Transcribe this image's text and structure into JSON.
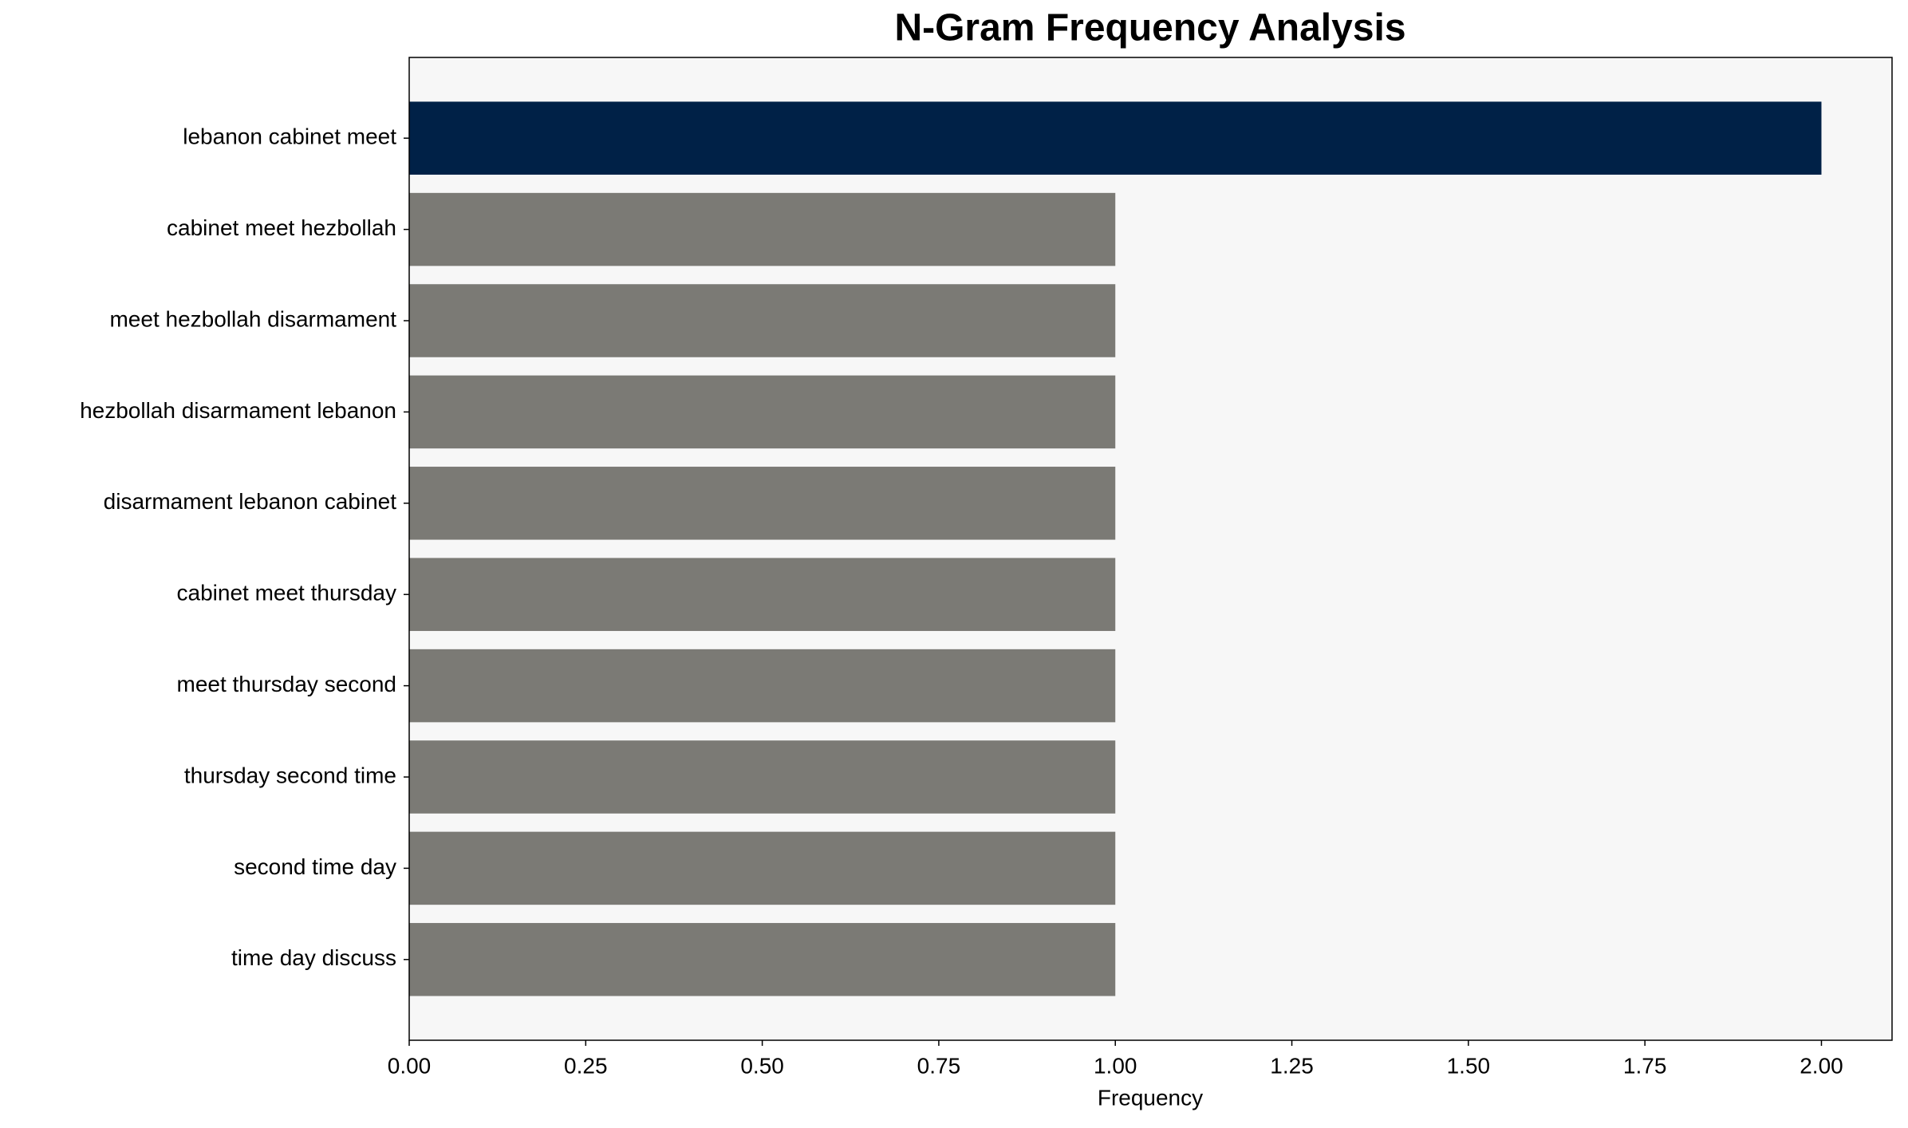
{
  "chart_data": {
    "type": "bar",
    "orientation": "horizontal",
    "title": "N-Gram Frequency Analysis",
    "x_label": "Frequency",
    "categories": [
      "lebanon cabinet meet",
      "cabinet meet hezbollah",
      "meet hezbollah disarmament",
      "hezbollah disarmament lebanon",
      "disarmament lebanon cabinet",
      "cabinet meet thursday",
      "meet thursday second",
      "thursday second time",
      "second time day",
      "time day discuss"
    ],
    "values": [
      2,
      1,
      1,
      1,
      1,
      1,
      1,
      1,
      1,
      1
    ],
    "colors": [
      "#002147",
      "#7b7a75",
      "#7b7a75",
      "#7b7a75",
      "#7b7a75",
      "#7b7a75",
      "#7b7a75",
      "#7b7a75",
      "#7b7a75",
      "#7b7a75"
    ],
    "xlim": [
      0,
      2.1
    ],
    "xticks": [
      {
        "value": 0,
        "label": "0.00"
      },
      {
        "value": 0.25,
        "label": "0.25"
      },
      {
        "value": 0.5,
        "label": "0.50"
      },
      {
        "value": 0.75,
        "label": "0.75"
      },
      {
        "value": 1,
        "label": "1.00"
      },
      {
        "value": 1.25,
        "label": "1.25"
      },
      {
        "value": 1.5,
        "label": "1.50"
      },
      {
        "value": 1.75,
        "label": "1.75"
      },
      {
        "value": 2,
        "label": "2.00"
      }
    ],
    "plot_background": "#f7f7f7",
    "grid": false
  }
}
